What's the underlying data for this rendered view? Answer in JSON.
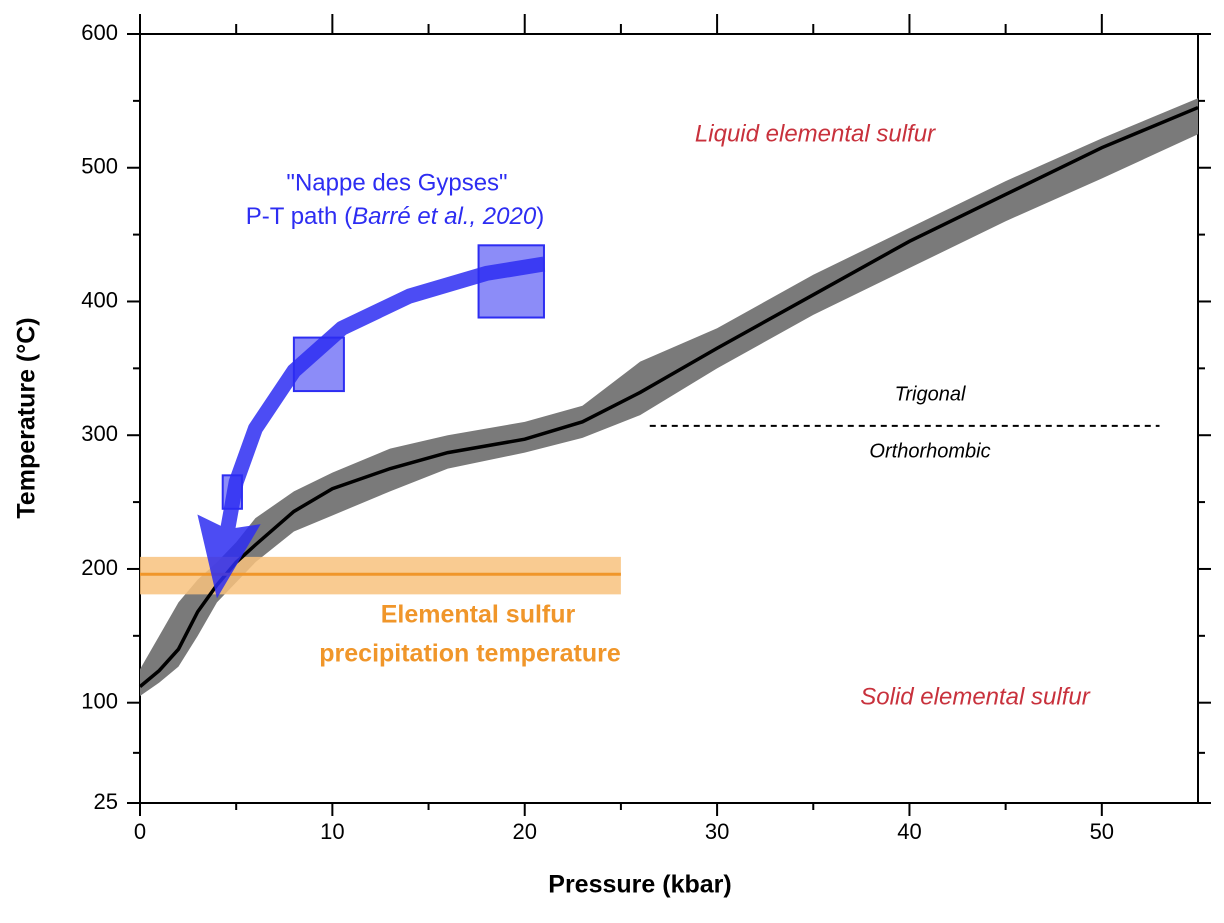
{
  "chart_data": {
    "type": "line",
    "xlabel": "Pressure (kbar)",
    "ylabel": "Temperature (°C)",
    "xlim": [
      0,
      55
    ],
    "ylim": [
      25,
      600
    ],
    "xticks": [
      0,
      10,
      20,
      30,
      40,
      50
    ],
    "yticks": [
      25,
      100,
      200,
      300,
      400,
      500,
      600
    ],
    "xminorticks": [
      5,
      15,
      25,
      35,
      45
    ],
    "yminorticks": [
      62.5,
      150,
      250,
      350,
      450,
      550
    ],
    "curve": {
      "x": [
        0,
        1,
        2,
        3,
        4,
        5,
        6,
        8,
        10,
        13,
        16,
        20,
        23,
        26,
        30,
        35,
        40,
        45,
        50,
        55
      ],
      "values": [
        112,
        124,
        140,
        168,
        188,
        205,
        218,
        243,
        260,
        275,
        287,
        297,
        310,
        332,
        365,
        405,
        445,
        480,
        515,
        545
      ],
      "upper": [
        125,
        150,
        175,
        192,
        205,
        220,
        238,
        258,
        272,
        290,
        300,
        310,
        322,
        355,
        380,
        420,
        455,
        490,
        522,
        552
      ],
      "lower": [
        105,
        115,
        127,
        150,
        175,
        190,
        205,
        228,
        240,
        258,
        275,
        287,
        298,
        315,
        350,
        390,
        425,
        460,
        492,
        525
      ],
      "color": "#000000",
      "band_color": "#7a7a7a"
    },
    "precipitation": {
      "x": [
        0,
        25
      ],
      "values": [
        196,
        196
      ],
      "upper": [
        209,
        209
      ],
      "lower": [
        181,
        181
      ],
      "color": "#f0962a",
      "band_color": "#f8c27e",
      "label": [
        "Elemental sulfur",
        "precipitation temperature"
      ]
    },
    "pt_path": {
      "color": "#2d2df2",
      "box_x": [
        [
          17.6,
          21
        ],
        [
          8,
          10.6
        ],
        [
          4.3,
          5.3
        ]
      ],
      "box_y": [
        [
          388,
          442
        ],
        [
          333,
          373
        ],
        [
          245,
          270
        ]
      ],
      "arrow_x": [
        21,
        18,
        14,
        10.5,
        8,
        6,
        5,
        4.5,
        4.0
      ],
      "arrow_values": [
        428,
        421,
        404,
        380,
        348,
        305,
        265,
        225,
        178
      ],
      "label": [
        "\"Nappe des Gypses\"",
        "P-T path (",
        "Barré et al., 2020",
        ")"
      ]
    },
    "phase_boundary": {
      "x": [
        26.5,
        53
      ],
      "values": [
        307,
        307
      ]
    },
    "annotations": [
      "Liquid elemental sulfur",
      "Solid elemental sulfur",
      "Trigonal",
      "Orthorhombic"
    ],
    "annotation_color": "#c8313c"
  }
}
